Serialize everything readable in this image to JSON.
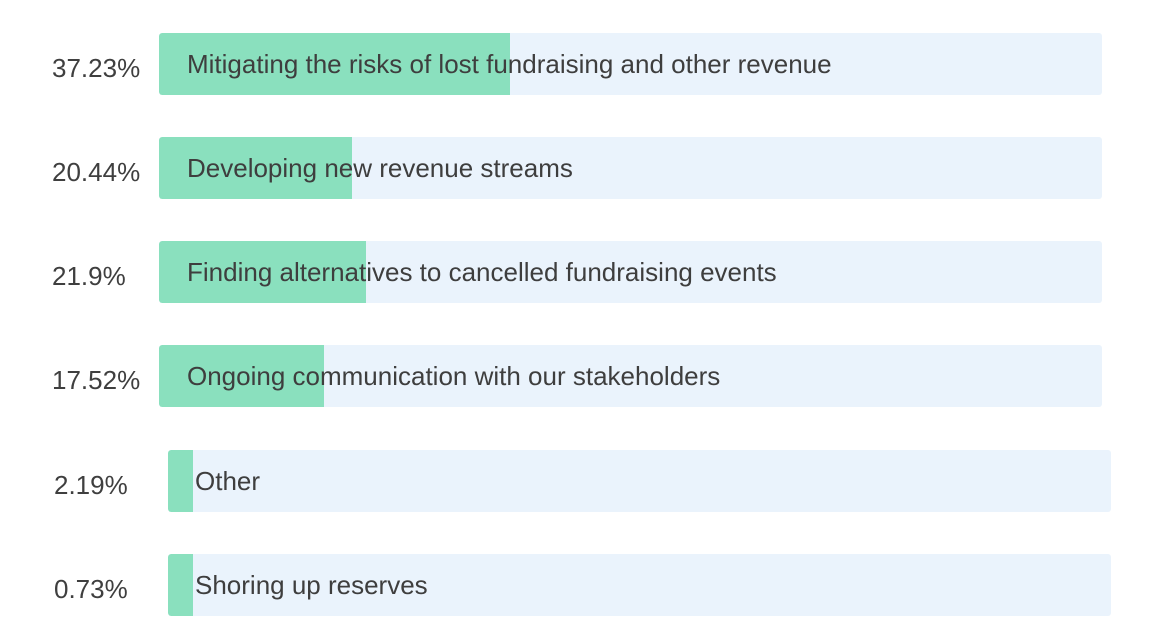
{
  "chart_data": {
    "type": "bar",
    "orientation": "horizontal",
    "categories": [
      "Mitigating the risks of lost fundraising and other revenue",
      "Developing new revenue streams",
      "Finding alternatives to cancelled fundraising events",
      "Ongoing communication with our stakeholders",
      "Other",
      "Shoring up reserves"
    ],
    "values": [
      37.23,
      20.44,
      21.9,
      17.52,
      2.19,
      0.73
    ],
    "value_labels": [
      "37.23%",
      "20.44%",
      "21.9%",
      "17.52%",
      "2.19%",
      "0.73%"
    ],
    "unit": "%",
    "xlim": [
      0,
      100
    ],
    "grid": false,
    "legend": "none",
    "colors": {
      "fill": "#8ae0be",
      "track": "#eaf3fc",
      "text": "#3e3e3e"
    }
  }
}
